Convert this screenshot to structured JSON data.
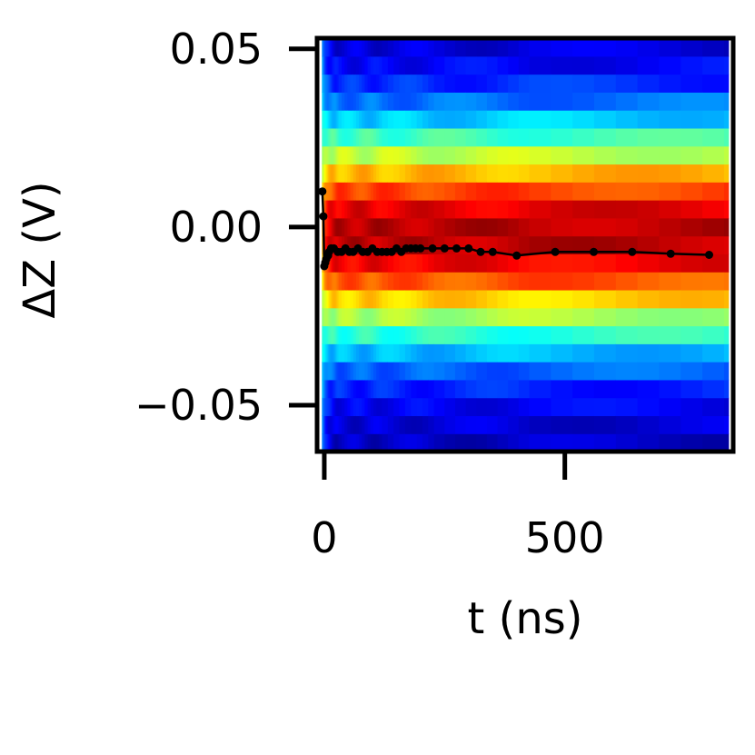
{
  "chart_data": {
    "type": "heatmap",
    "title": "",
    "xlabel": "t (ns)",
    "ylabel": "ΔZ (V)",
    "xlim": [
      -15,
      850
    ],
    "ylim": [
      -0.063,
      0.053
    ],
    "x_ticks": [
      0,
      500
    ],
    "x_tick_labels": [
      "0",
      "500"
    ],
    "y_ticks": [
      0.05,
      0.0,
      -0.05
    ],
    "y_tick_labels": [
      "0.05",
      "0.00",
      "−0.05"
    ],
    "colormap": "jet",
    "grid": false,
    "legend": "none",
    "heatmap": {
      "x_range": [
        -5,
        840
      ],
      "y_range": [
        -0.063,
        0.053
      ],
      "y_center": -0.002,
      "y_sigma": 0.021
    },
    "series": [
      {
        "color": "#000000",
        "x": [
          -4,
          -2,
          0,
          2,
          4,
          6,
          8,
          10,
          14,
          20,
          28,
          36,
          44,
          52,
          60,
          70,
          80,
          90,
          100,
          110,
          120,
          130,
          140,
          150,
          160,
          170,
          180,
          190,
          200,
          225,
          250,
          275,
          300,
          325,
          350,
          400,
          480,
          560,
          640,
          720,
          800
        ],
        "y": [
          0.01,
          0.003,
          -0.011,
          -0.01,
          -0.009,
          -0.008,
          -0.008,
          -0.007,
          -0.006,
          -0.006,
          -0.007,
          -0.007,
          -0.006,
          -0.007,
          -0.007,
          -0.006,
          -0.007,
          -0.007,
          -0.006,
          -0.007,
          -0.007,
          -0.007,
          -0.007,
          -0.006,
          -0.007,
          -0.006,
          -0.006,
          -0.006,
          -0.006,
          -0.006,
          -0.006,
          -0.006,
          -0.006,
          -0.007,
          -0.007,
          -0.008,
          -0.007,
          -0.007,
          -0.007,
          -0.0075,
          -0.0078
        ]
      }
    ]
  }
}
